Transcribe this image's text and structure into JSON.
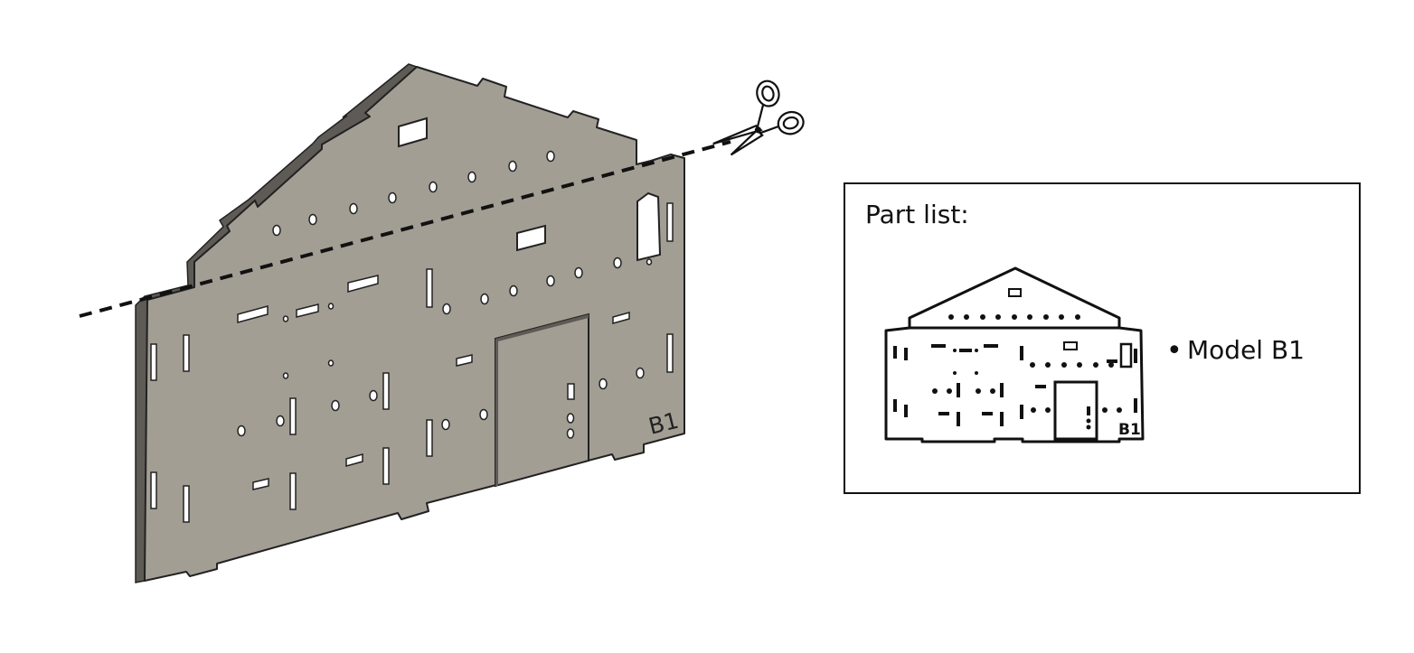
{
  "panel": {
    "label": "B1",
    "face_color": "#a39e94",
    "edge_color": "#5e5a55"
  },
  "cut": {
    "icon": "scissors-icon"
  },
  "part_list": {
    "title": "Part list:",
    "thumbnail_label": "B1",
    "items": [
      {
        "bullet": "•",
        "label": "Model B1"
      }
    ]
  }
}
